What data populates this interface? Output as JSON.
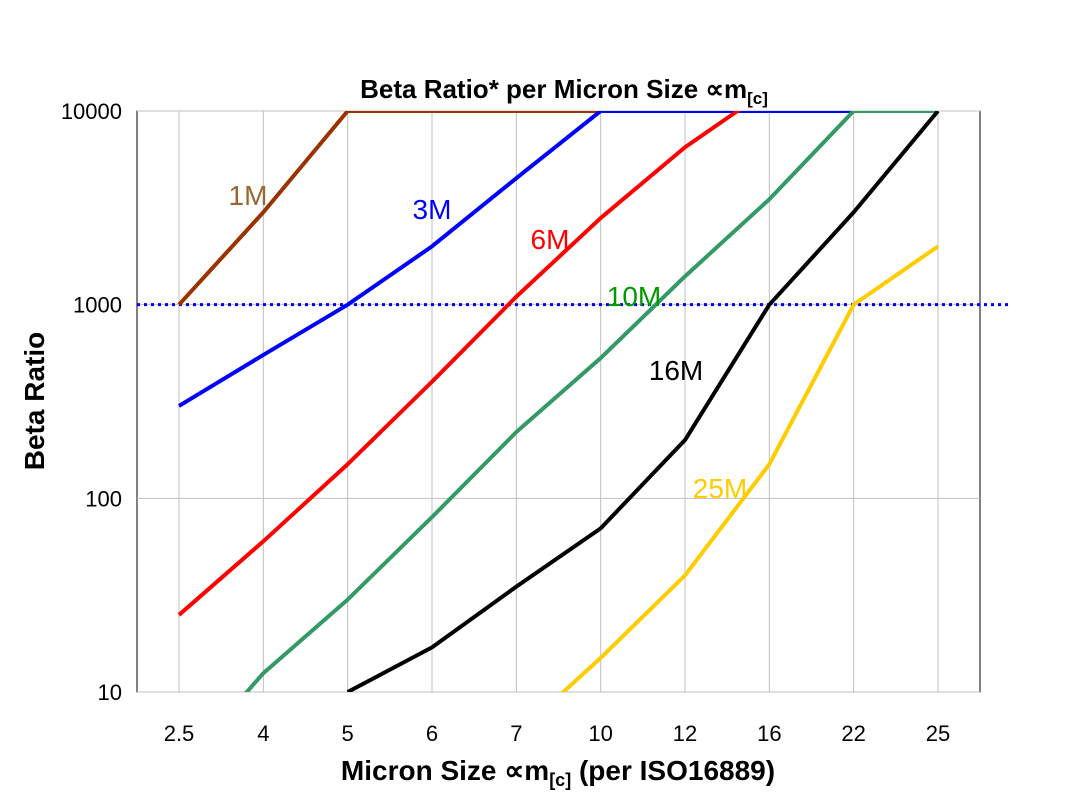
{
  "chart_data": {
    "type": "line",
    "title": "Beta Ratio* per Micron Size ∝m",
    "title_sub": "[c]",
    "xlabel": "Micron Size ∝m",
    "xlabel_sub": "[c]",
    "xlabel_suffix": " (per ISO16889)",
    "ylabel": "Beta Ratio",
    "yscale": "log",
    "ylim": [
      10,
      10000
    ],
    "yticks": [
      "10",
      "100",
      "1000",
      "10000"
    ],
    "categories": [
      "2.5",
      "4",
      "5",
      "6",
      "7",
      "10",
      "12",
      "16",
      "22",
      "25"
    ],
    "grid": true,
    "reference_line": {
      "value": 1000,
      "color": "#0000ff",
      "style": "dotted"
    },
    "series": [
      {
        "name": "1M",
        "color": "#993300",
        "label_color": "#996633",
        "values": [
          1000,
          3000,
          10000,
          10000,
          10000,
          10000,
          null,
          null,
          null,
          null
        ]
      },
      {
        "name": "3M",
        "color": "#0000ff",
        "label_color": "#0000ff",
        "values": [
          300,
          550,
          1000,
          2000,
          4500,
          10000,
          10000,
          10000,
          10000,
          null
        ]
      },
      {
        "name": "6M",
        "color": "#ff0000",
        "label_color": "#ff0000",
        "values": [
          25,
          60,
          150,
          400,
          1100,
          2800,
          6500,
          13000,
          null,
          null
        ]
      },
      {
        "name": "10M",
        "color": "#339966",
        "label_color": "#009900",
        "values": [
          4,
          12.5,
          30,
          80,
          220,
          530,
          1400,
          3500,
          10000,
          10000
        ]
      },
      {
        "name": "16M",
        "color": "#000000",
        "label_color": "#000000",
        "values": [
          null,
          null,
          10,
          17,
          35,
          70,
          200,
          1000,
          3000,
          10000
        ]
      },
      {
        "name": "25M",
        "color": "#ffcc00",
        "label_color": "#ffcc00",
        "values": [
          null,
          null,
          null,
          null,
          6,
          15,
          40,
          150,
          1000,
          2000
        ]
      }
    ]
  }
}
